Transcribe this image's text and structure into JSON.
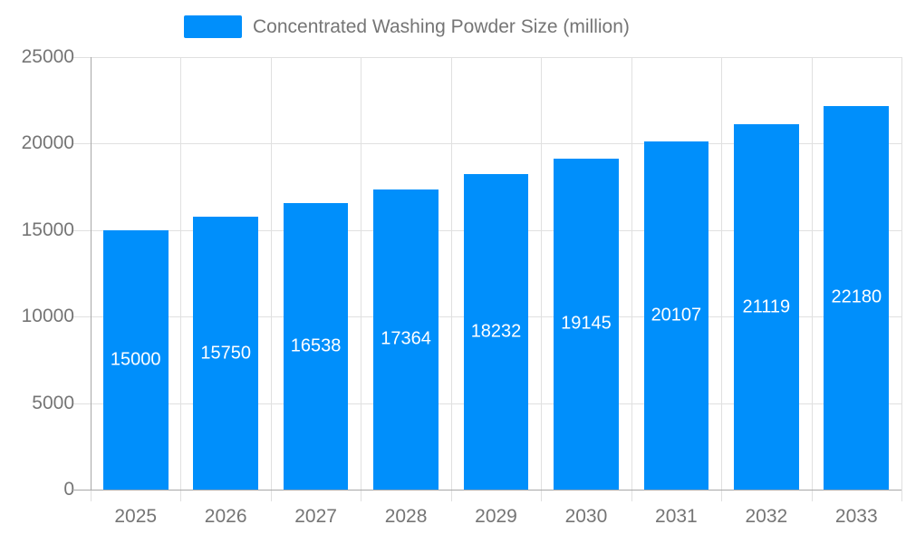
{
  "chart_data": {
    "type": "bar",
    "title": "",
    "categories": [
      "2025",
      "2026",
      "2027",
      "2028",
      "2029",
      "2030",
      "2031",
      "2032",
      "2033"
    ],
    "series": [
      {
        "name": "Concentrated Washing Powder Size (million)",
        "values": [
          15000,
          15750,
          16538,
          17364,
          18232,
          19145,
          20107,
          21119,
          22180
        ],
        "color": "#008FFB"
      }
    ],
    "xlabel": "",
    "ylabel": "",
    "ylim": [
      0,
      25000
    ],
    "yticks": [
      0,
      5000,
      10000,
      15000,
      20000,
      25000
    ],
    "ytick_labels": [
      "0",
      "5000",
      "10000",
      "15000",
      "20000",
      "25000"
    ],
    "grid": true,
    "legend_position": "top",
    "value_labels": {
      "visible": true,
      "position": "center-of-bar",
      "color": "#FFFFFF"
    }
  },
  "colors": {
    "bar": "#008FFB",
    "grid_line": "#E0E0E0",
    "axis_line": "#A8A8A8",
    "axis_text": "#757575",
    "legend_text": "#757575",
    "value_label_text": "#FFFFFF",
    "background": "#FFFFFF"
  }
}
